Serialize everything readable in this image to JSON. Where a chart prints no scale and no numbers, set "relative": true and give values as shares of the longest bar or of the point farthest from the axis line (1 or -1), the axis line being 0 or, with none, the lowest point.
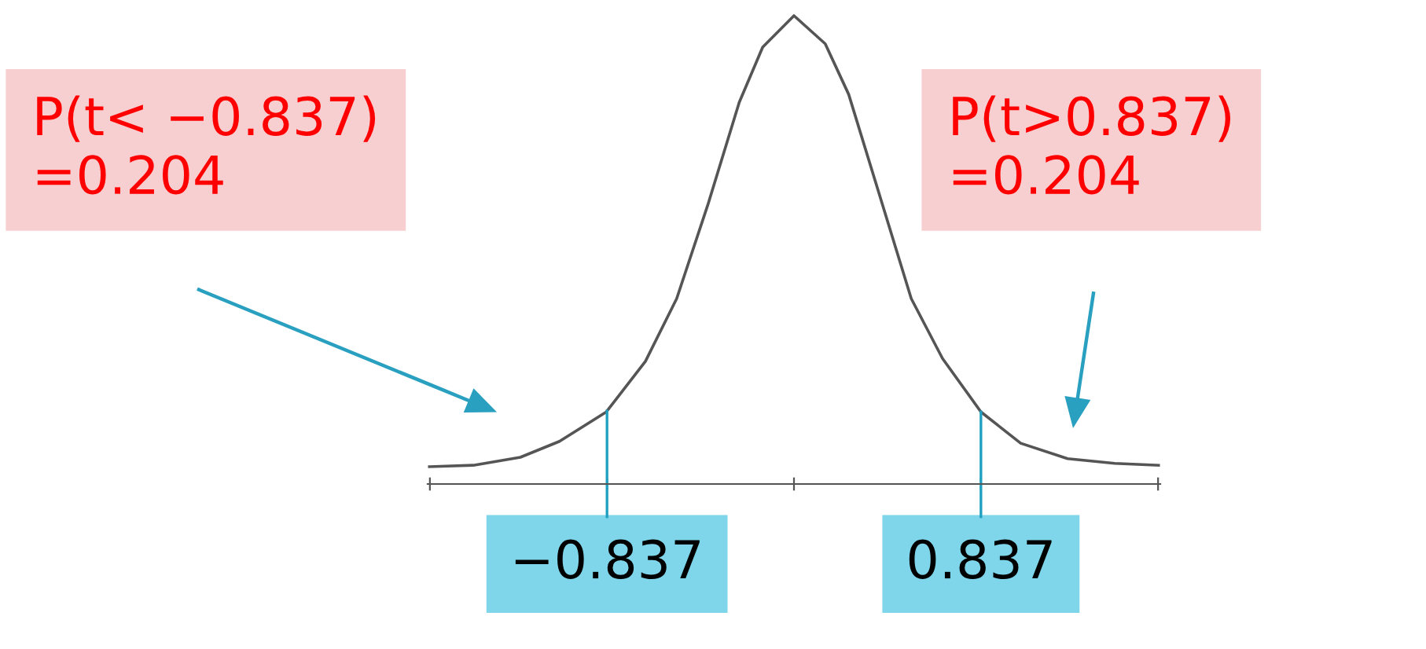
{
  "chart_data": {
    "type": "line",
    "relative": true,
    "x": [
      -1.632,
      -1.436,
      -1.225,
      -1.05,
      -0.84,
      -0.665,
      -0.525,
      -0.385,
      -0.245,
      -0.14,
      0,
      0.14,
      0.245,
      0.385,
      0.525,
      0.665,
      0.837,
      1.015,
      1.225,
      1.436,
      1.632
    ],
    "series": [
      {
        "color": "#555555",
        "values": [
          0.037,
          0.04,
          0.057,
          0.091,
          0.154,
          0.262,
          0.396,
          0.597,
          0.815,
          0.933,
          1,
          0.94,
          0.832,
          0.614,
          0.396,
          0.268,
          0.154,
          0.087,
          0.054,
          0.044,
          0.04
        ]
      }
    ],
    "xlim": [
      -1.64,
      1.64
    ],
    "xticks": [
      {
        "value": -1.63,
        "label": null
      },
      {
        "value": -0.837,
        "label": "−0.837"
      },
      {
        "value": 0,
        "label": null
      },
      {
        "value": 0.837,
        "label": "0.837"
      },
      {
        "value": 1.63,
        "label": null
      }
    ],
    "grid": false,
    "legend": false,
    "marker": "none",
    "line_style": "solid",
    "ref_lines": [
      {
        "axis": "x",
        "value": -0.837,
        "color": "#1fa0c0"
      },
      {
        "axis": "x",
        "value": 0.837,
        "color": "#1fa0c0"
      }
    ],
    "annotations": [
      "P(t< −0.837)\n=0.204",
      "P(t>0.837)\n=0.204"
    ]
  }
}
